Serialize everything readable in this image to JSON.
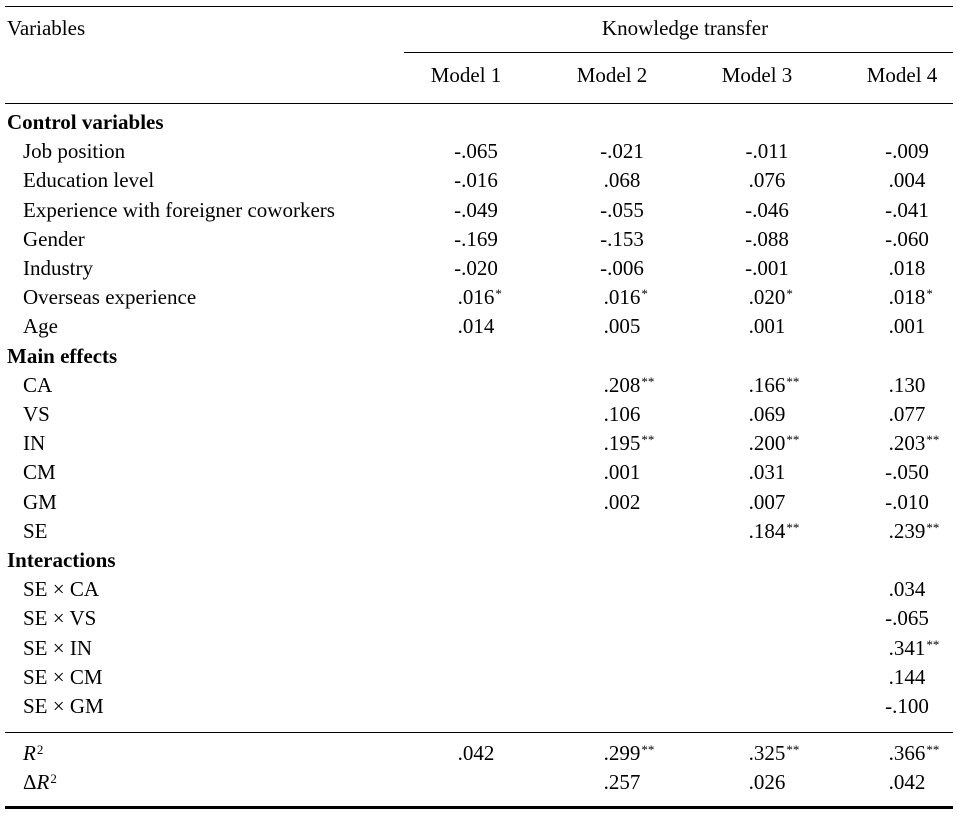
{
  "header": {
    "variables_label": "Variables",
    "group_label": "Knowledge transfer",
    "models": [
      "Model 1",
      "Model 2",
      "Model 3",
      "Model 4"
    ]
  },
  "sections": [
    {
      "title": "Control variables",
      "rows": [
        {
          "label": "Job position",
          "values": [
            "-.065",
            "-.021",
            "-.011",
            "-.009"
          ],
          "sig": [
            "",
            "",
            "",
            ""
          ]
        },
        {
          "label": "Education level",
          "values": [
            "-.016",
            ".068",
            ".076",
            ".004"
          ],
          "sig": [
            "",
            "",
            "",
            ""
          ]
        },
        {
          "label": "Experience with foreigner coworkers",
          "values": [
            "-.049",
            "-.055",
            "-.046",
            "-.041"
          ],
          "sig": [
            "",
            "",
            "",
            ""
          ]
        },
        {
          "label": "Gender",
          "values": [
            "-.169",
            "-.153",
            "-.088",
            "-.060"
          ],
          "sig": [
            "",
            "",
            "",
            ""
          ]
        },
        {
          "label": "Industry",
          "values": [
            "-.020",
            "-.006",
            "-.001",
            ".018"
          ],
          "sig": [
            "",
            "",
            "",
            ""
          ]
        },
        {
          "label": "Overseas experience",
          "values": [
            ".016",
            ".016",
            ".020",
            ".018"
          ],
          "sig": [
            "*",
            "*",
            "*",
            "*"
          ]
        },
        {
          "label": "Age",
          "values": [
            ".014",
            ".005",
            ".001",
            ".001"
          ],
          "sig": [
            "",
            "",
            "",
            ""
          ]
        }
      ]
    },
    {
      "title": "Main effects",
      "rows": [
        {
          "label": "CA",
          "values": [
            "",
            ".208",
            ".166",
            ".130"
          ],
          "sig": [
            "",
            "**",
            "**",
            ""
          ]
        },
        {
          "label": "VS",
          "values": [
            "",
            ".106",
            ".069",
            ".077"
          ],
          "sig": [
            "",
            "",
            "",
            ""
          ]
        },
        {
          "label": "IN",
          "values": [
            "",
            ".195",
            ".200",
            ".203"
          ],
          "sig": [
            "",
            "**",
            "**",
            "**"
          ]
        },
        {
          "label": "CM",
          "values": [
            "",
            ".001",
            ".031",
            "-.050"
          ],
          "sig": [
            "",
            "",
            "",
            ""
          ]
        },
        {
          "label": "GM",
          "values": [
            "",
            ".002",
            ".007",
            "-.010"
          ],
          "sig": [
            "",
            "",
            "",
            ""
          ]
        },
        {
          "label": "SE",
          "values": [
            "",
            "",
            ".184",
            ".239"
          ],
          "sig": [
            "",
            "",
            "**",
            "**"
          ]
        }
      ]
    },
    {
      "title": "Interactions",
      "rows": [
        {
          "label": "SE × CA",
          "values": [
            "",
            "",
            "",
            ".034"
          ],
          "sig": [
            "",
            "",
            "",
            ""
          ]
        },
        {
          "label": "SE × VS",
          "values": [
            "",
            "",
            "",
            "-.065"
          ],
          "sig": [
            "",
            "",
            "",
            ""
          ]
        },
        {
          "label": "SE × IN",
          "values": [
            "",
            "",
            "",
            ".341"
          ],
          "sig": [
            "",
            "",
            "",
            "**"
          ]
        },
        {
          "label": "SE × CM",
          "values": [
            "",
            "",
            "",
            ".144"
          ],
          "sig": [
            "",
            "",
            "",
            ""
          ]
        },
        {
          "label": "SE × GM",
          "values": [
            "",
            "",
            "",
            "-.100"
          ],
          "sig": [
            "",
            "",
            "",
            ""
          ]
        }
      ]
    }
  ],
  "fit": [
    {
      "label_main": "R",
      "label_sup": "2",
      "label_prefix": "",
      "values": [
        ".042",
        ".299",
        ".325",
        ".366"
      ],
      "sig": [
        "",
        "**",
        "**",
        "**"
      ]
    },
    {
      "label_main": "R",
      "label_sup": "2",
      "label_prefix": "Δ",
      "values": [
        "",
        ".257",
        ".026",
        ".042"
      ],
      "sig": [
        "",
        "",
        "",
        ""
      ]
    }
  ]
}
